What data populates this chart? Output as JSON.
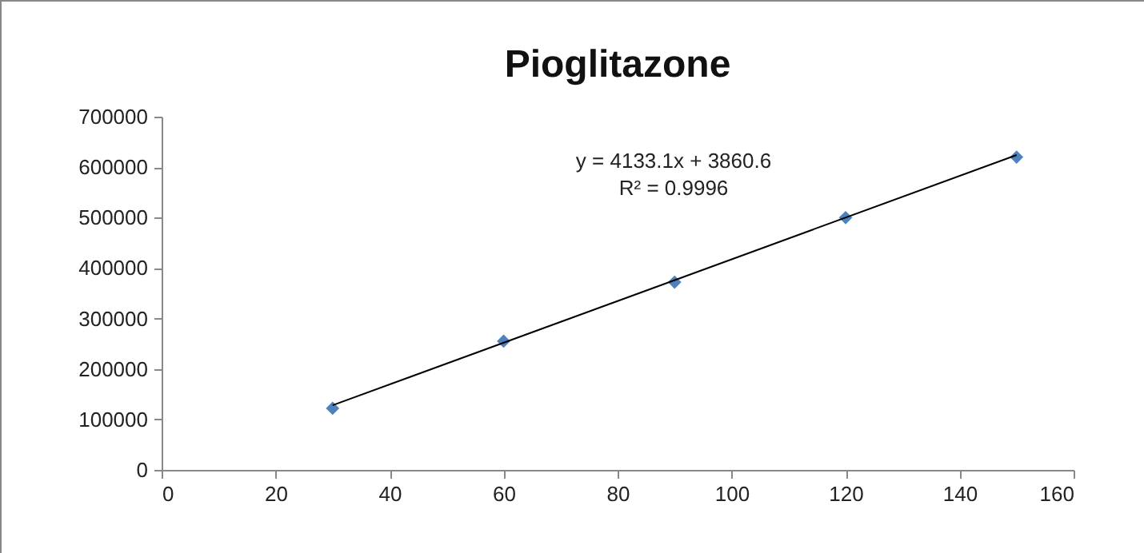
{
  "chart_data": {
    "type": "scatter",
    "title": "Pioglitazone",
    "x": [
      30,
      60,
      90,
      120,
      150
    ],
    "series": [
      {
        "color": "#4f81bd",
        "marker": "diamond",
        "values": [
          122000,
          255000,
          372000,
          500000,
          620000
        ]
      },
      {
        "type": "line",
        "color": "#000000",
        "x": [
          30,
          150
        ],
        "values": [
          128000,
          624000
        ]
      }
    ],
    "xlim": [
      0,
      160
    ],
    "xticks": [
      0,
      20,
      40,
      60,
      80,
      100,
      120,
      140,
      160
    ],
    "ylim": [
      0,
      700000
    ],
    "yticks": [
      0,
      100000,
      200000,
      300000,
      400000,
      500000,
      600000,
      700000
    ],
    "annotations": [
      "y = 4133.1x + 3860.6",
      "R² = 0.9996"
    ],
    "grid": false
  }
}
